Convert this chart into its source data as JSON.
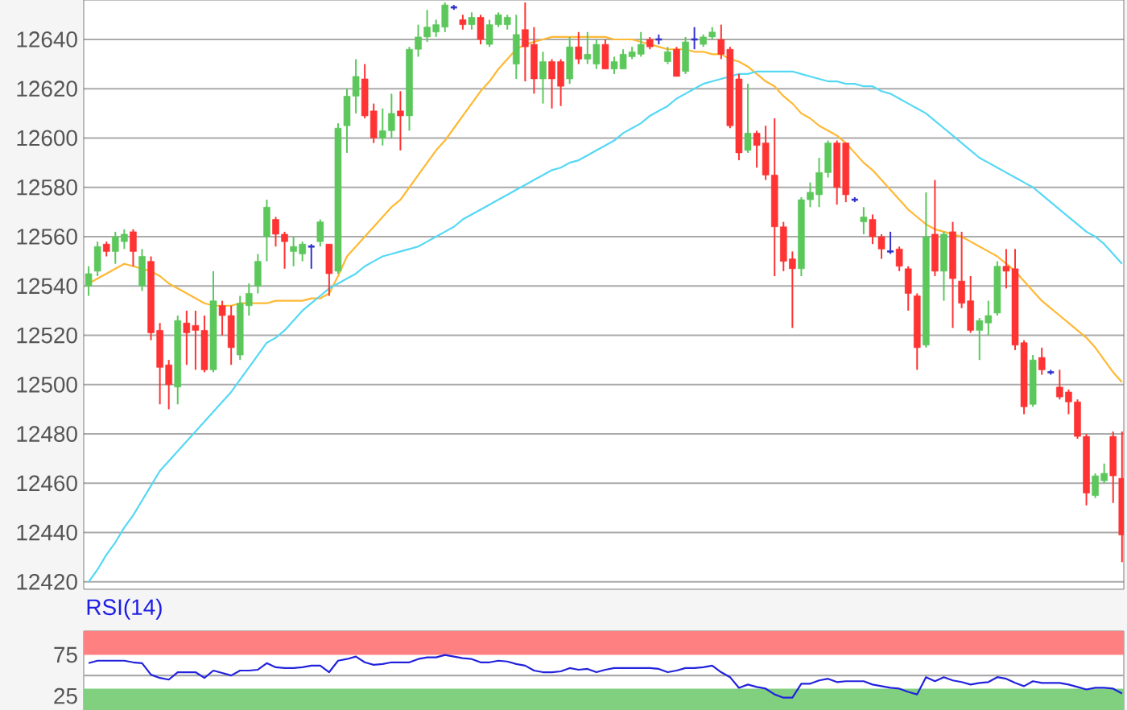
{
  "chart_data": [
    {
      "type": "candlestick",
      "categories": [
        null,
        null,
        null,
        null,
        null,
        null,
        null,
        null,
        null,
        null,
        null,
        null,
        null,
        null,
        null,
        null,
        null,
        null,
        null,
        null,
        null,
        null,
        null,
        null,
        null,
        null,
        null,
        null,
        null,
        null,
        null,
        null,
        null,
        null,
        null,
        null,
        null,
        null,
        null,
        null,
        null,
        null,
        null,
        null,
        null,
        null,
        null,
        null,
        null,
        null,
        null,
        null,
        null,
        null,
        null,
        null,
        null,
        null,
        null,
        null,
        null,
        null,
        null,
        null,
        null,
        null,
        null,
        null,
        null,
        null,
        null,
        null,
        null,
        null,
        null,
        null,
        null,
        null,
        null,
        null,
        null,
        null,
        null,
        null,
        null,
        null,
        null,
        null,
        null,
        null,
        null,
        null,
        null,
        null,
        null,
        null,
        null,
        null,
        null,
        null,
        null,
        null,
        null,
        null,
        null,
        null,
        null,
        null,
        null,
        null,
        null,
        null,
        null,
        null,
        null,
        null,
        null
      ],
      "ohlc": [
        [
          12540,
          12548,
          12536,
          12545
        ],
        [
          12546,
          12558,
          12544,
          12556
        ],
        [
          12557,
          12558,
          12552,
          12554
        ],
        [
          12554,
          12562,
          12549,
          12560
        ],
        [
          12558,
          12563,
          12555,
          12561
        ],
        [
          12562,
          12563,
          12548,
          12554
        ],
        [
          12540,
          12555,
          12538,
          12552
        ],
        [
          12550,
          12552,
          12518,
          12521
        ],
        [
          12522,
          12525,
          12492,
          12507
        ],
        [
          12508,
          12510,
          12490,
          12500
        ],
        [
          12499,
          12528,
          12492,
          12526
        ],
        [
          12525,
          12530,
          12508,
          12521
        ],
        [
          12524,
          12530,
          12506,
          12522
        ],
        [
          12522,
          12528,
          12505,
          12506
        ],
        [
          12506,
          12546,
          12505,
          12534
        ],
        [
          12532,
          12534,
          12520,
          12528
        ],
        [
          12528,
          12532,
          12508,
          12515
        ],
        [
          12512,
          12536,
          12510,
          12533
        ],
        [
          12532,
          12541,
          12528,
          12537
        ],
        [
          12540,
          12553,
          12537,
          12550
        ],
        [
          12560,
          12575,
          12550,
          12572
        ],
        [
          12567,
          12568,
          12556,
          12561
        ],
        [
          12561,
          12562,
          12547,
          12558
        ],
        [
          12554,
          12560,
          12548,
          12556
        ],
        [
          12553,
          12558,
          12550,
          12557
        ],
        [
          12556,
          12557,
          12547,
          12556
        ],
        [
          12558,
          12567,
          12556,
          12566
        ],
        [
          12557,
          12557,
          12536,
          12545
        ],
        [
          12546,
          12606,
          12545,
          12604
        ],
        [
          12605,
          12620,
          12594,
          12617
        ],
        [
          12617,
          12632,
          12610,
          12625
        ],
        [
          12624,
          12630,
          12608,
          12609
        ],
        [
          12611,
          12614,
          12598,
          12600
        ],
        [
          12600,
          12612,
          12597,
          12603
        ],
        [
          12603,
          12618,
          12600,
          12610
        ],
        [
          12611,
          12619,
          12595,
          12609
        ],
        [
          12609,
          12637,
          12603,
          12636
        ],
        [
          12636,
          12646,
          12633,
          12641
        ],
        [
          12641,
          12652,
          12639,
          12645
        ],
        [
          12643,
          12648,
          12641,
          12646
        ],
        [
          12645,
          12655,
          12643,
          12654
        ],
        [
          12653,
          12654,
          12652,
          12653
        ],
        [
          12648,
          12650,
          12644,
          12646
        ],
        [
          12646,
          12651,
          12644,
          12649
        ],
        [
          12649,
          12650,
          12638,
          12640
        ],
        [
          12638,
          12648,
          12637,
          12646
        ],
        [
          12646,
          12651,
          12645,
          12650
        ],
        [
          12646,
          12650,
          12644,
          12649
        ],
        [
          12630,
          12650,
          12624,
          12642
        ],
        [
          12644,
          12655,
          12623,
          12637
        ],
        [
          12638,
          12645,
          12618,
          12624
        ],
        [
          12624,
          12635,
          12614,
          12631
        ],
        [
          12631,
          12632,
          12612,
          12624
        ],
        [
          12631,
          12632,
          12613,
          12621
        ],
        [
          12624,
          12641,
          12622,
          12637
        ],
        [
          12637,
          12643,
          12630,
          12632
        ],
        [
          12632,
          12643,
          12630,
          12634
        ],
        [
          12630,
          12640,
          12628,
          12638
        ],
        [
          12638,
          12640,
          12628,
          12628
        ],
        [
          12628,
          12633,
          12626,
          12631
        ],
        [
          12628,
          12636,
          12628,
          12634
        ],
        [
          12633,
          12637,
          12632,
          12635
        ],
        [
          12634,
          12643,
          12633,
          12638
        ],
        [
          12640,
          12641,
          12636,
          12637
        ],
        [
          12640,
          12642,
          12638,
          12640
        ],
        [
          12631,
          12637,
          12630,
          12635
        ],
        [
          12636,
          12637,
          12625,
          12625
        ],
        [
          12627,
          12641,
          12626,
          12639
        ],
        [
          12640,
          12645,
          12636,
          12640
        ],
        [
          12638,
          12642,
          12637,
          12641
        ],
        [
          12641,
          12645,
          12640,
          12643
        ],
        [
          12640,
          12646,
          12632,
          12634
        ],
        [
          12636,
          12637,
          12604,
          12605
        ],
        [
          12624,
          12626,
          12591,
          12594
        ],
        [
          12595,
          12622,
          12594,
          12602
        ],
        [
          12602,
          12603,
          12588,
          12597
        ],
        [
          12598,
          12605,
          12583,
          12585
        ],
        [
          12585,
          12608,
          12544,
          12564
        ],
        [
          12564,
          12566,
          12546,
          12550
        ],
        [
          12551,
          12554,
          12523,
          12547
        ],
        [
          12547,
          12576,
          12544,
          12575
        ],
        [
          12575,
          12582,
          12572,
          12578
        ],
        [
          12577,
          12592,
          12572,
          12586
        ],
        [
          12586,
          12599,
          12584,
          12598
        ],
        [
          12598,
          12599,
          12573,
          12580
        ],
        [
          12598,
          12598,
          12574,
          12577
        ],
        [
          12575,
          12576,
          12574,
          12575
        ],
        [
          12566,
          12572,
          12561,
          12568
        ],
        [
          12567,
          12569,
          12557,
          12560
        ],
        [
          12560,
          12561,
          12551,
          12555
        ],
        [
          12554,
          12562,
          12553,
          12554
        ],
        [
          12555,
          12556,
          12546,
          12548
        ],
        [
          12547,
          12548,
          12530,
          12537
        ],
        [
          12536,
          12537,
          12506,
          12515
        ],
        [
          12516,
          12578,
          12515,
          12560
        ],
        [
          12561,
          12583,
          12544,
          12546
        ],
        [
          12546,
          12562,
          12534,
          12561
        ],
        [
          12562,
          12566,
          12523,
          12543
        ],
        [
          12542,
          12562,
          12531,
          12533
        ],
        [
          12534,
          12544,
          12521,
          12522
        ],
        [
          12522,
          12527,
          12510,
          12526
        ],
        [
          12525,
          12534,
          12520,
          12528
        ],
        [
          12529,
          12550,
          12528,
          12548
        ],
        [
          12548,
          12555,
          12539,
          12546
        ],
        [
          12547,
          12555,
          12514,
          12516
        ],
        [
          12517,
          12518,
          12488,
          12491
        ],
        [
          12492,
          12512,
          12491,
          12510
        ],
        [
          12511,
          12515,
          12504,
          12506
        ],
        [
          12505,
          12506,
          12504,
          12505
        ],
        [
          12499,
          12506,
          12494,
          12495
        ],
        [
          12497,
          12498,
          12488,
          12493
        ],
        [
          12493,
          12494,
          12478,
          12479
        ],
        [
          12479,
          12480,
          12451,
          12456
        ],
        [
          12455,
          12464,
          12454,
          12463
        ],
        [
          12461,
          12468,
          12460,
          12464
        ],
        [
          12479,
          12481,
          12452,
          12463
        ],
        [
          12462,
          12481,
          12428,
          12439
        ]
      ],
      "colors": [
        "#5cc85c",
        "#5cc85c",
        "#ff3333",
        "#5cc85c",
        "#5cc85c",
        "#ff3333",
        "#5cc85c",
        "#ff3333",
        "#ff3333",
        "#ff3333",
        "#5cc85c",
        "#ff3333",
        "#ff3333",
        "#ff3333",
        "#5cc85c",
        "#ff3333",
        "#ff3333",
        "#5cc85c",
        "#5cc85c",
        "#5cc85c",
        "#5cc85c",
        "#ff3333",
        "#ff3333",
        "#5cc85c",
        "#5cc85c",
        "#3333cc",
        "#5cc85c",
        "#ff3333",
        "#5cc85c",
        "#5cc85c",
        "#5cc85c",
        "#ff3333",
        "#ff3333",
        "#5cc85c",
        "#5cc85c",
        "#ff3333",
        "#5cc85c",
        "#5cc85c",
        "#5cc85c",
        "#5cc85c",
        "#5cc85c",
        "#3333cc",
        "#ff3333",
        "#5cc85c",
        "#ff3333",
        "#5cc85c",
        "#5cc85c",
        "#5cc85c",
        "#5cc85c",
        "#ff3333",
        "#ff3333",
        "#5cc85c",
        "#ff3333",
        "#ff3333",
        "#5cc85c",
        "#ff3333",
        "#5cc85c",
        "#5cc85c",
        "#ff3333",
        "#5cc85c",
        "#5cc85c",
        "#5cc85c",
        "#5cc85c",
        "#ff3333",
        "#3333cc",
        "#5cc85c",
        "#ff3333",
        "#5cc85c",
        "#3333cc",
        "#5cc85c",
        "#5cc85c",
        "#ff3333",
        "#ff3333",
        "#ff3333",
        "#5cc85c",
        "#ff3333",
        "#ff3333",
        "#ff3333",
        "#ff3333",
        "#ff3333",
        "#5cc85c",
        "#5cc85c",
        "#5cc85c",
        "#5cc85c",
        "#ff3333",
        "#ff3333",
        "#3333cc",
        "#5cc85c",
        "#ff3333",
        "#ff3333",
        "#3333cc",
        "#ff3333",
        "#ff3333",
        "#ff3333",
        "#5cc85c",
        "#ff3333",
        "#5cc85c",
        "#ff3333",
        "#ff3333",
        "#ff3333",
        "#5cc85c",
        "#5cc85c",
        "#5cc85c",
        "#ff3333",
        "#ff3333",
        "#ff3333",
        "#5cc85c",
        "#ff3333",
        "#3333cc",
        "#ff3333",
        "#ff3333",
        "#ff3333",
        "#ff3333",
        "#5cc85c",
        "#5cc85c",
        "#ff3333",
        "#ff3333"
      ],
      "series": [
        {
          "type": "line",
          "color": "#ffb833",
          "values": [
            12541,
            12543,
            12545,
            12547,
            12549,
            12548,
            12547,
            12546,
            12544,
            12541,
            12539,
            12537,
            12535,
            12533,
            12532,
            12532,
            12532,
            12533,
            12533,
            12533,
            12533,
            12534,
            12534,
            12534,
            12534,
            12535,
            12535,
            12537,
            12544,
            12552,
            12556,
            12560,
            12564,
            12568,
            12572,
            12575,
            12580,
            12585,
            12590,
            12595,
            12599,
            12604,
            12609,
            12614,
            12619,
            12623,
            12628,
            12632,
            12636,
            12638,
            12639,
            12640,
            12641,
            12641,
            12641,
            12641,
            12641,
            12641,
            12641,
            12640,
            12640,
            12640,
            12639,
            12638,
            12637,
            12636,
            12636,
            12636,
            12635,
            12635,
            12634,
            12634,
            12632,
            12631,
            12629,
            12626,
            12623,
            12621,
            12617,
            12614,
            12610,
            12608,
            12605,
            12603,
            12601,
            12598,
            12594,
            12590,
            12587,
            12583,
            12579,
            12575,
            12571,
            12568,
            12565,
            12563,
            12562,
            12561,
            12560,
            12558,
            12556,
            12554,
            12552,
            12549,
            12546,
            12542,
            12538,
            12534,
            12531,
            12528,
            12525,
            12522,
            12519,
            12515,
            12510,
            12505,
            12501
          ]
        },
        {
          "type": "line",
          "color": "#55d8f5",
          "values": [
            12420,
            12425,
            12431,
            12436,
            12442,
            12447,
            12453,
            12459,
            12465,
            12469,
            12473,
            12477,
            12481,
            12485,
            12489,
            12493,
            12497,
            12502,
            12507,
            12512,
            12517,
            12519,
            12522,
            12526,
            12530,
            12533,
            12536,
            12539,
            12541,
            12543,
            12545,
            12548,
            12550,
            12552,
            12553,
            12554,
            12555,
            12556,
            12558,
            12560,
            12562,
            12564,
            12567,
            12569,
            12571,
            12573,
            12575,
            12577,
            12579,
            12581,
            12583,
            12585,
            12587,
            12588,
            12590,
            12591,
            12593,
            12595,
            12597,
            12599,
            12602,
            12604,
            12606,
            12609,
            12611,
            12613,
            12616,
            12618,
            12620,
            12622,
            12623,
            12624,
            12625,
            12626,
            12626,
            12627,
            12627,
            12627,
            12627,
            12627,
            12626,
            12625,
            12624,
            12623,
            12623,
            12622,
            12622,
            12621,
            12621,
            12619,
            12618,
            12616,
            12614,
            12612,
            12610,
            12607,
            12604,
            12601,
            12598,
            12595,
            12592,
            12590,
            12588,
            12586,
            12584,
            12582,
            12580,
            12577,
            12574,
            12571,
            12568,
            12565,
            12562,
            12560,
            12557,
            12553,
            12549
          ]
        }
      ],
      "ylim": [
        12417,
        12656
      ],
      "yticks": [
        12420,
        12440,
        12460,
        12480,
        12500,
        12520,
        12540,
        12560,
        12580,
        12600,
        12620,
        12640
      ],
      "grid": "y",
      "tick_labels": "y"
    },
    {
      "type": "line",
      "title": "RSI(14)",
      "categories": [
        null,
        null,
        null,
        null,
        null,
        null,
        null,
        null,
        null,
        null,
        null,
        null,
        null,
        null,
        null,
        null,
        null,
        null,
        null,
        null,
        null,
        null,
        null,
        null,
        null,
        null,
        null,
        null,
        null,
        null,
        null,
        null,
        null,
        null,
        null,
        null,
        null,
        null,
        null,
        null,
        null,
        null,
        null,
        null,
        null,
        null,
        null,
        null,
        null,
        null,
        null,
        null,
        null,
        null,
        null,
        null,
        null,
        null,
        null,
        null,
        null,
        null,
        null,
        null,
        null,
        null,
        null,
        null,
        null,
        null,
        null,
        null,
        null,
        null,
        null,
        null,
        null,
        null,
        null,
        null,
        null,
        null,
        null,
        null,
        null,
        null,
        null,
        null,
        null,
        null,
        null,
        null,
        null,
        null,
        null,
        null,
        null,
        null,
        null,
        null,
        null,
        null,
        null,
        null,
        null,
        null,
        null,
        null,
        null,
        null,
        null,
        null,
        null,
        null,
        null,
        null,
        null
      ],
      "series": [
        {
          "color": "#2222dd",
          "values": [
            65,
            68,
            68,
            68,
            68,
            66,
            65,
            51,
            47,
            45,
            54,
            54,
            54,
            47,
            56,
            53,
            50,
            56,
            56,
            57,
            65,
            60,
            59,
            59,
            60,
            62,
            62,
            54,
            68,
            70,
            73,
            66,
            63,
            64,
            66,
            66,
            66,
            70,
            72,
            72,
            75,
            73,
            71,
            70,
            66,
            66,
            68,
            67,
            64,
            62,
            56,
            54,
            54,
            55,
            59,
            57,
            58,
            54,
            57,
            59,
            59,
            59,
            59,
            59,
            58,
            54,
            56,
            59,
            59,
            60,
            62,
            54,
            48,
            35,
            39,
            36,
            34,
            27,
            23,
            23,
            40,
            40,
            44,
            46,
            42,
            43,
            43,
            43,
            39,
            37,
            35,
            34,
            30,
            27,
            48,
            43,
            48,
            44,
            42,
            39,
            41,
            42,
            48,
            46,
            41,
            37,
            43,
            41,
            41,
            41,
            39,
            36,
            33,
            35,
            35,
            34,
            28
          ]
        }
      ],
      "ylim": [
        8,
        104
      ],
      "yticks": [
        25,
        75
      ],
      "bands": [
        {
          "axis": "y",
          "from": 75,
          "to": 104,
          "color": "#ff8080"
        },
        {
          "axis": "y",
          "from": 8,
          "to": 34,
          "color": "#80d080"
        }
      ],
      "ref_lines": [
        {
          "axis": "y",
          "value": 50,
          "color": "#aaaaaa"
        }
      ],
      "tick_labels": "y"
    }
  ]
}
